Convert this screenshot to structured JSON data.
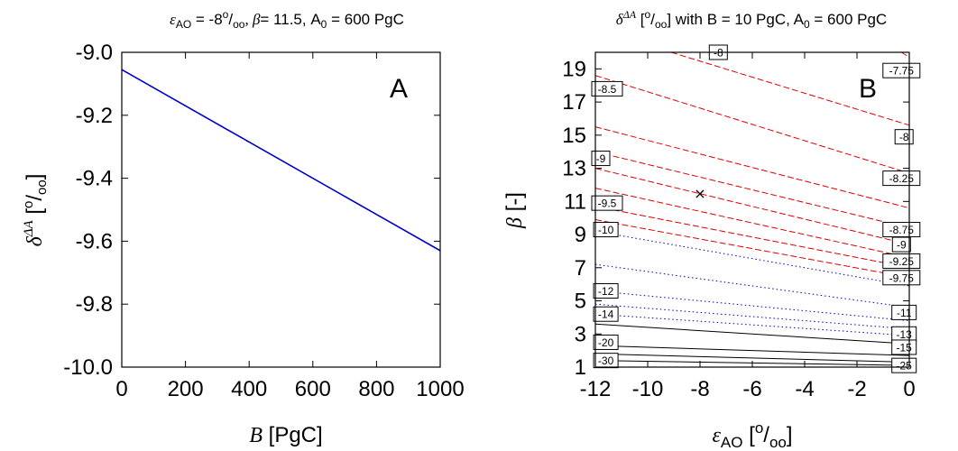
{
  "chart_data": [
    {
      "type": "line",
      "panel": "A",
      "title_parts": {
        "eps": "ε",
        "eps_sub": "AO",
        "eps_val": " = -8",
        "eps_sup": "o",
        "eps_unit": "/",
        "eps_unit_sub": "oo",
        "beta": ", β",
        "beta_val": "= 11.5, A",
        "a_sub": "0",
        "a_val": " = 600 PgC"
      },
      "xlabel_parts": {
        "var": "B",
        "unit": " [PgC]"
      },
      "ylabel_parts": {
        "delta": "δ",
        "delta_sup": "ΔA",
        "open": " [",
        "sup": "o",
        "slash": "/",
        "sub": "oo",
        "close": "]"
      },
      "xlim": [
        0,
        1000
      ],
      "ylim": [
        -10.0,
        -9.0
      ],
      "xticks": [
        "0",
        "200",
        "400",
        "600",
        "800",
        "1000"
      ],
      "xtick_values": [
        0,
        200,
        400,
        600,
        800,
        1000
      ],
      "yticks": [
        "-9.0",
        "-9.2",
        "-9.4",
        "-9.6",
        "-9.8",
        "-10.0"
      ],
      "ytick_values": [
        -9.0,
        -9.2,
        -9.4,
        -9.6,
        -9.8,
        -10.0
      ],
      "series": [
        {
          "color": "#0000cc",
          "x": [
            0,
            1000
          ],
          "y": [
            -9.055,
            -9.63
          ]
        }
      ]
    },
    {
      "type": "contour",
      "panel": "B",
      "title_parts": {
        "delta": "δ",
        "delta_sup": "ΔA",
        "open": " [",
        "sup": "o",
        "slash": "/",
        "sub": "oo",
        "rest": "] with B = 10 PgC, A",
        "a_sub": "0",
        "a_val": " = 600 PgC"
      },
      "xlabel_parts": {
        "eps": "ε",
        "eps_sub": "AO",
        "open": " [",
        "sup": "o",
        "slash": "/",
        "sub": "oo",
        "close": "]"
      },
      "ylabel_parts": {
        "beta": "β",
        "unit": " [-]"
      },
      "xlim": [
        -12,
        0
      ],
      "ylim": [
        1,
        20
      ],
      "xticks": [
        "-12",
        "-10",
        "-8",
        "-6",
        "-4",
        "-2",
        "0"
      ],
      "xtick_values": [
        -12,
        -10,
        -8,
        -6,
        -4,
        -2,
        0
      ],
      "yticks": [
        "1",
        "3",
        "5",
        "7",
        "9",
        "11",
        "13",
        "15",
        "17",
        "19"
      ],
      "ytick_values": [
        1,
        3,
        5,
        7,
        9,
        11,
        13,
        15,
        17,
        19
      ],
      "marker": {
        "x": -8,
        "y": 11.5,
        "symbol": "×"
      },
      "colors": {
        "red": "#dd0000",
        "blue": "#0000cc",
        "black": "#000000"
      },
      "contours": [
        {
          "label": "-7.75",
          "style": "red",
          "x0": -0.3,
          "y0": 20.0,
          "x1": 0,
          "y1": 19.7
        },
        {
          "label": "-8",
          "style": "red",
          "x0": -9.1,
          "y0": 20.0,
          "x1": 0,
          "y1": 15.6
        },
        {
          "label": "-8.25",
          "style": "red",
          "x0": -12,
          "y0": 18.6,
          "x1": 0,
          "y1": 12.7
        },
        {
          "label": "-8.5",
          "style": "red",
          "x0": -12,
          "y0": 15.5,
          "x1": 0,
          "y1": 10.6
        },
        {
          "label": "-8.75",
          "style": "red",
          "x0": -12,
          "y0": 14.0,
          "x1": 0,
          "y1": 9.4
        },
        {
          "label": "-9",
          "style": "red",
          "x0": -12,
          "y0": 13.0,
          "x1": 0,
          "y1": 8.4
        },
        {
          "label": "-9.25",
          "style": "red",
          "x0": -12,
          "y0": 11.8,
          "x1": 0,
          "y1": 7.6
        },
        {
          "label": "-9.5",
          "style": "red",
          "x0": -12,
          "y0": 10.7,
          "x1": 0,
          "y1": 7.0
        },
        {
          "label": "-9.75",
          "style": "red",
          "x0": -12,
          "y0": 9.9,
          "x1": 0,
          "y1": 6.4
        },
        {
          "label": "-10",
          "style": "blue",
          "x0": -12,
          "y0": 9.2,
          "x1": 0,
          "y1": 5.9
        },
        {
          "label": "-11",
          "style": "blue",
          "x0": -12,
          "y0": 7.2,
          "x1": 0,
          "y1": 4.6
        },
        {
          "label": "-12",
          "style": "blue",
          "x0": -12,
          "y0": 5.6,
          "x1": 0,
          "y1": 3.8
        },
        {
          "label": "-13",
          "style": "blue",
          "x0": -12,
          "y0": 4.8,
          "x1": 0,
          "y1": 3.3
        },
        {
          "label": "-14",
          "style": "blue",
          "x0": -12,
          "y0": 4.2,
          "x1": 0,
          "y1": 2.9
        },
        {
          "label": "-15",
          "style": "black",
          "x0": -12,
          "y0": 3.6,
          "x1": 0,
          "y1": 2.4
        },
        {
          "label": "-20",
          "style": "black",
          "x0": -12,
          "y0": 2.3,
          "x1": 0,
          "y1": 1.7
        },
        {
          "label": "-25",
          "style": "black",
          "x0": -12,
          "y0": 1.8,
          "x1": 0,
          "y1": 1.3
        },
        {
          "label": "-30",
          "style": "black",
          "x0": -12,
          "y0": 1.4,
          "x1": 0,
          "y1": 1.1
        }
      ],
      "contour_labels": [
        {
          "text": "-8",
          "x": -7.3,
          "y": 20.0
        },
        {
          "text": "-7.75",
          "x": -0.3,
          "y": 18.9
        },
        {
          "text": "-8.5",
          "x": -11.6,
          "y": 17.8
        },
        {
          "text": "-8",
          "x": -0.2,
          "y": 14.9
        },
        {
          "text": "-9",
          "x": -11.8,
          "y": 13.6
        },
        {
          "text": "-8.25",
          "x": -0.3,
          "y": 12.4
        },
        {
          "text": "-9.5",
          "x": -11.6,
          "y": 10.9
        },
        {
          "text": "-10",
          "x": -11.6,
          "y": 9.3
        },
        {
          "text": "-8.75",
          "x": -0.3,
          "y": 9.3
        },
        {
          "text": "-9",
          "x": -0.3,
          "y": 8.4
        },
        {
          "text": "-9.25",
          "x": -0.3,
          "y": 7.4
        },
        {
          "text": "-9.75",
          "x": -0.3,
          "y": 6.4
        },
        {
          "text": "-12",
          "x": -11.6,
          "y": 5.6
        },
        {
          "text": "-14",
          "x": -11.6,
          "y": 4.2
        },
        {
          "text": "-11",
          "x": -0.2,
          "y": 4.3
        },
        {
          "text": "-13",
          "x": -0.2,
          "y": 3.0
        },
        {
          "text": "-15",
          "x": -0.2,
          "y": 2.2
        },
        {
          "text": "-20",
          "x": -11.6,
          "y": 2.5
        },
        {
          "text": "-30",
          "x": -11.6,
          "y": 1.4
        },
        {
          "text": "-25",
          "x": -0.2,
          "y": 1.1
        }
      ]
    }
  ]
}
